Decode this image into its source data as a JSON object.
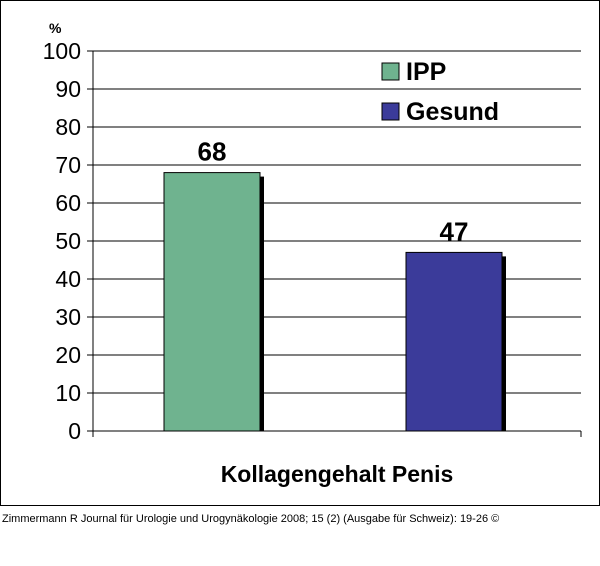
{
  "chart_data": {
    "type": "bar",
    "categories": [
      "IPP",
      "Gesund"
    ],
    "values": [
      68,
      47
    ],
    "data_labels": [
      "68",
      "47"
    ],
    "colors": [
      "#6fb38f",
      "#3b3b9a"
    ],
    "xlabel": "Kollagengehalt Penis",
    "ylabel": "%",
    "ylim": [
      0,
      100
    ],
    "yticks": [
      "0",
      "10",
      "20",
      "30",
      "40",
      "50",
      "60",
      "70",
      "80",
      "90",
      "100"
    ],
    "grid": true,
    "legend": {
      "placement": "top-right",
      "entries": [
        "IPP",
        "Gesund"
      ]
    }
  },
  "caption": "Zimmermann R Journal für Urologie und Urogynäkologie 2008; 15 (2) (Ausgabe für Schweiz): 19-26 ©"
}
